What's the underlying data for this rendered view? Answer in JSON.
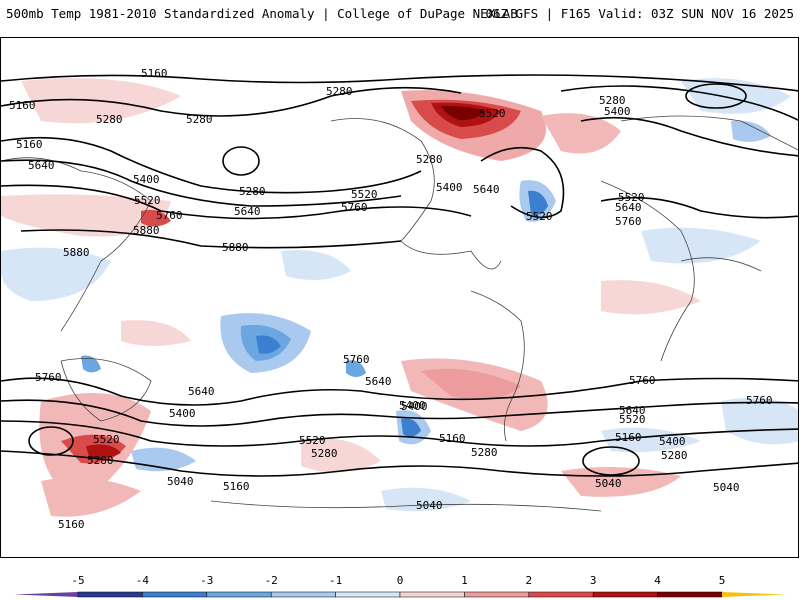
{
  "header": {
    "title_left": "500mb Temp 1981-2010 Standardized Anomaly | College of DuPage NEXLAB",
    "title_right": "06Z GFS | F165 Valid: 03Z SUN NOV 16 2025"
  },
  "contour_labels": [
    {
      "id": "c1",
      "text": "5160"
    },
    {
      "id": "c2",
      "text": "5280"
    },
    {
      "id": "c3",
      "text": "5280"
    },
    {
      "id": "c4",
      "text": "5160"
    },
    {
      "id": "c5",
      "text": "5160"
    },
    {
      "id": "c6",
      "text": "5280"
    },
    {
      "id": "c7",
      "text": "5640"
    },
    {
      "id": "c8",
      "text": "5400"
    },
    {
      "id": "c9",
      "text": "5280"
    },
    {
      "id": "c10",
      "text": "5520"
    },
    {
      "id": "c11",
      "text": "5640"
    },
    {
      "id": "c12",
      "text": "5760"
    },
    {
      "id": "c13",
      "text": "5880"
    },
    {
      "id": "c14",
      "text": "5880"
    },
    {
      "id": "c15",
      "text": "5880"
    },
    {
      "id": "c16",
      "text": "5520"
    },
    {
      "id": "c17",
      "text": "5760"
    },
    {
      "id": "c18",
      "text": "5280"
    },
    {
      "id": "c19",
      "text": "5400"
    },
    {
      "id": "c20",
      "text": "5640"
    },
    {
      "id": "c21",
      "text": "5520"
    },
    {
      "id": "c22",
      "text": "5520"
    },
    {
      "id": "c23",
      "text": "5280"
    },
    {
      "id": "c24",
      "text": "5400"
    },
    {
      "id": "c25",
      "text": "5520"
    },
    {
      "id": "c26",
      "text": "5640"
    },
    {
      "id": "c27",
      "text": "5760"
    },
    {
      "id": "c28",
      "text": "5760"
    },
    {
      "id": "c29",
      "text": "5760"
    },
    {
      "id": "c30",
      "text": "5640"
    },
    {
      "id": "c31",
      "text": "5400"
    },
    {
      "id": "c32",
      "text": "5520"
    },
    {
      "id": "c33",
      "text": "5280"
    },
    {
      "id": "c34",
      "text": "5040"
    },
    {
      "id": "c35",
      "text": "5160"
    },
    {
      "id": "c36",
      "text": "5160"
    },
    {
      "id": "c37",
      "text": "5760"
    },
    {
      "id": "c38",
      "text": "5640"
    },
    {
      "id": "c39",
      "text": "5400"
    },
    {
      "id": "c40",
      "text": "5520"
    },
    {
      "id": "c41",
      "text": "5280"
    },
    {
      "id": "c42",
      "text": "5400"
    },
    {
      "id": "c43",
      "text": "5160"
    },
    {
      "id": "c44",
      "text": "5280"
    },
    {
      "id": "c45",
      "text": "5040"
    },
    {
      "id": "c46",
      "text": "5760"
    },
    {
      "id": "c47",
      "text": "5640"
    },
    {
      "id": "c48",
      "text": "5520"
    },
    {
      "id": "c49",
      "text": "5160"
    },
    {
      "id": "c50",
      "text": "5400"
    },
    {
      "id": "c51",
      "text": "5280"
    },
    {
      "id": "c52",
      "text": "5040"
    },
    {
      "id": "c53",
      "text": "5040"
    }
  ],
  "colorbar": {
    "ticks": [
      "-5",
      "-4",
      "-3",
      "-2",
      "-1",
      "0",
      "1",
      "2",
      "3",
      "4",
      "5"
    ],
    "colors": [
      "#2a3b8f",
      "#3a7fd0",
      "#6aa6e0",
      "#a9c9ee",
      "#d6e6f7",
      "#ffffff",
      "#f6d3d3",
      "#ec9c9c",
      "#d94b4b",
      "#b01212",
      "#7a0000"
    ]
  }
}
